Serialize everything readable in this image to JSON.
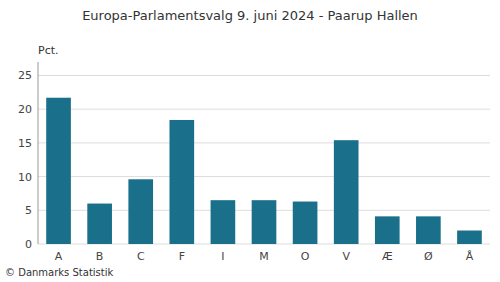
{
  "chart_data": {
    "type": "bar",
    "title": "Europa-Parlamentsvalg 9. juni 2024 - Paarup Hallen",
    "ylabel": "Pct.",
    "footer": "© Danmarks Statistik",
    "categories": [
      "A",
      "B",
      "C",
      "F",
      "I",
      "M",
      "O",
      "V",
      "Æ",
      "Ø",
      "Å"
    ],
    "values": [
      21.7,
      6.0,
      9.6,
      18.4,
      6.5,
      6.5,
      6.3,
      15.4,
      4.1,
      4.1,
      2.0
    ],
    "color": "#1a6f8a",
    "ylim": [
      0,
      27
    ],
    "yticks": [
      0,
      5,
      10,
      15,
      20,
      25
    ],
    "grid": true
  }
}
